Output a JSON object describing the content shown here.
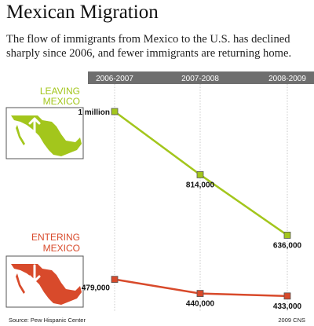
{
  "header": {
    "title": "Mexican Migration",
    "subtitle": "The flow of immigrants from Mexico to the U.S. has declined sharply since 2006, and fewer immigrants are returning home."
  },
  "footer": {
    "source": "Source: Pew Hispanic Center",
    "credit": "2009 CNS"
  },
  "chart_data": {
    "type": "line",
    "categories": [
      "2006-2007",
      "2007-2008",
      "2008-2009"
    ],
    "series": [
      {
        "name": "LEAVING MEXICO",
        "label_lines": [
          "LEAVING",
          "MEXICO"
        ],
        "color": "#a3c61c",
        "values": [
          1000000,
          814000,
          636000
        ],
        "value_labels": [
          "1 million",
          "814,000",
          "636,000"
        ]
      },
      {
        "name": "ENTERING MEXICO",
        "label_lines": [
          "ENTERING",
          "MEXICO"
        ],
        "color": "#d84a2b",
        "values": [
          479000,
          440000,
          433000
        ],
        "value_labels": [
          "479,000",
          "440,000",
          "433,000"
        ]
      }
    ],
    "map_icon_names": [
      "mexico-map-arrow-up-icon",
      "mexico-map-arrow-down-icon"
    ],
    "header_bar_color": "#6e6e6e",
    "grid": "vertical-dotted"
  }
}
